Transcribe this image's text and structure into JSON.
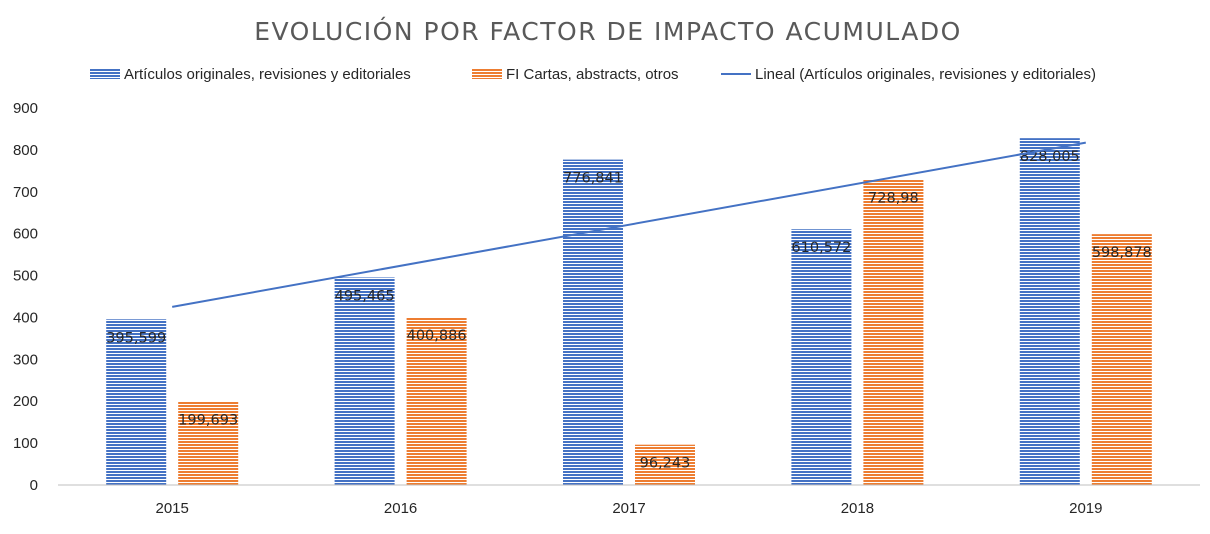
{
  "chart_data": {
    "type": "bar",
    "title": "EVOLUCIÓN POR FACTOR DE IMPACTO ACUMULADO",
    "xlabel": "",
    "ylabel": "",
    "categories": [
      "2015",
      "2016",
      "2017",
      "2018",
      "2019"
    ],
    "ylim": [
      0,
      900
    ],
    "yticks": [
      "0",
      "100",
      "200",
      "300",
      "400",
      "500",
      "600",
      "700",
      "800",
      "900"
    ],
    "grid": false,
    "legend_position": "top",
    "series": [
      {
        "name": "Artículos originales, revisiones y editoriales",
        "color": "#4472C4",
        "values": [
          395.599,
          495.465,
          776.841,
          610.572,
          828.005
        ],
        "labels": [
          "395,599",
          "495,465",
          "776,841",
          "610,572",
          "828,005"
        ]
      },
      {
        "name": "FI Cartas, abstracts, otros",
        "color": "#ED7D31",
        "values": [
          199.693,
          400.886,
          96.243,
          728.98,
          598.878
        ],
        "labels": [
          "199,693",
          "400,886",
          "96,243",
          "728,98",
          "598,878"
        ]
      }
    ],
    "trendline": {
      "name": "Lineal (Artículos originales, revisiones y editoriales)",
      "type": "linear",
      "of_series": 0,
      "color": "#4472C4"
    }
  }
}
